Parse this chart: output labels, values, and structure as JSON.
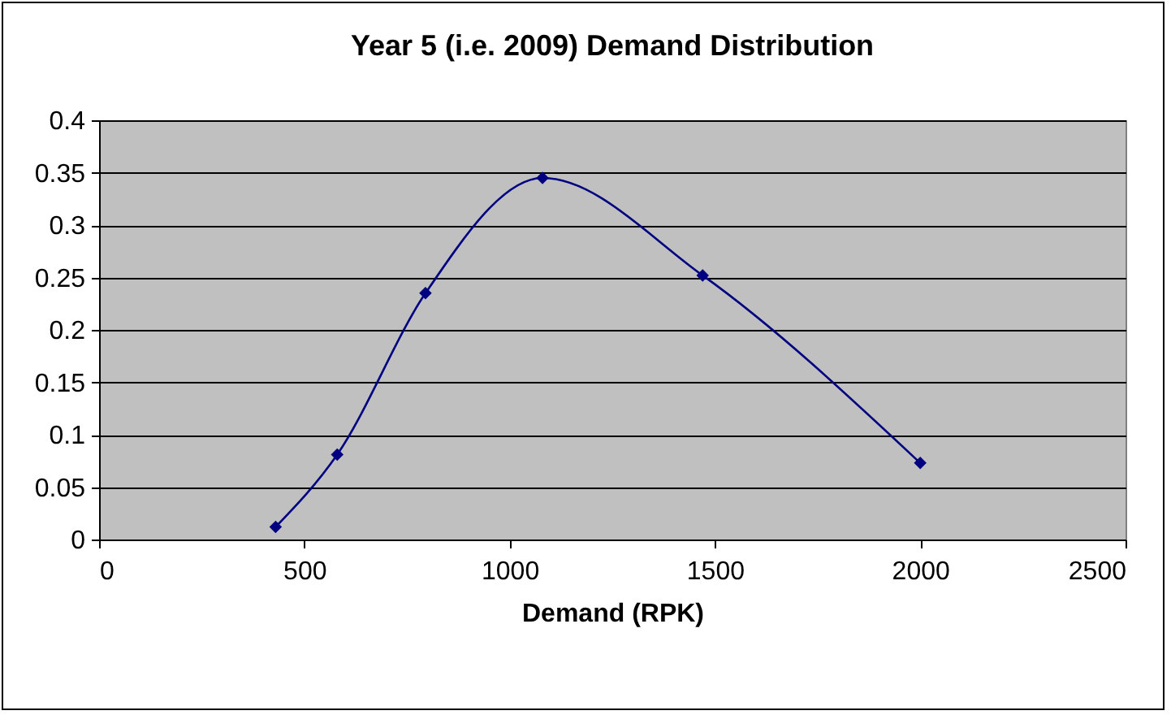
{
  "chart_data": {
    "type": "line",
    "title": "Year 5 (i.e. 2009) Demand Distribution",
    "xlabel": "Demand (RPK)",
    "x": [
      430,
      580,
      795,
      1080,
      1470,
      2000
    ],
    "series": [
      {
        "color": "#000080",
        "values": [
          0.012,
          0.081,
          0.235,
          0.345,
          0.252,
          0.073
        ]
      }
    ],
    "xlim": [
      0,
      2500
    ],
    "xticks": [
      0,
      500,
      1000,
      1500,
      2000,
      2500
    ],
    "ylim": [
      0,
      0.4
    ],
    "yticks": [
      0,
      0.05,
      0.1,
      0.15,
      0.2,
      0.25,
      0.3,
      0.35,
      0.4
    ],
    "grid": "y",
    "legend": false,
    "marker": "diamond",
    "line_style": "solid"
  }
}
